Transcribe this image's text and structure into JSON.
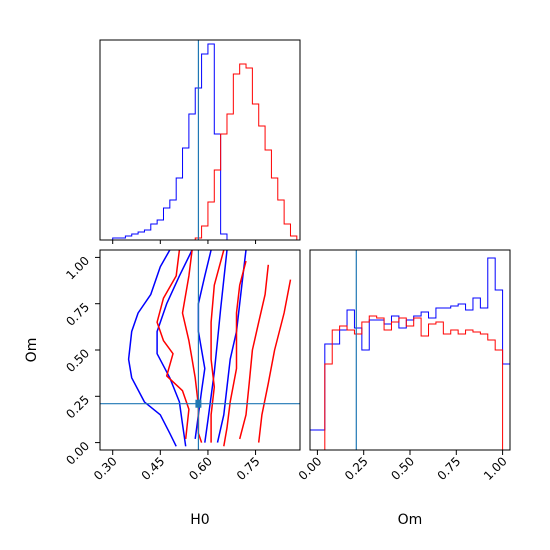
{
  "chart_data": {
    "type": "corner",
    "colors": {
      "series_a": "#0000ff",
      "series_b": "#ff0000",
      "truth": "#1f77b4"
    },
    "truth": {
      "H0": 0.57,
      "Om": 0.21
    },
    "panels": {
      "h0_hist": {
        "type": "histogram",
        "xlim": [
          0.26,
          0.89
        ],
        "x_ticks": [
          0.3,
          0.45,
          0.6,
          0.75
        ],
        "bins": [
          0.26,
          0.28,
          0.3,
          0.32,
          0.34,
          0.36,
          0.38,
          0.4,
          0.42,
          0.44,
          0.46,
          0.48,
          0.5,
          0.52,
          0.54,
          0.56,
          0.58,
          0.6,
          0.62,
          0.64,
          0.66,
          0.68,
          0.7,
          0.72,
          0.74,
          0.76,
          0.78,
          0.8,
          0.82,
          0.84,
          0.86,
          0.88
        ],
        "series": [
          {
            "color_key": "series_a",
            "values": [
              0,
              0,
              0.01,
              0.01,
              0.02,
              0.03,
              0.04,
              0.05,
              0.08,
              0.1,
              0.16,
              0.2,
              0.31,
              0.46,
              0.63,
              0.76,
              0.93,
              0.98,
              0.53,
              0.03,
              0,
              0,
              0,
              0,
              0,
              0,
              0,
              0,
              0,
              0,
              0
            ]
          },
          {
            "color_key": "series_b",
            "values": [
              0,
              0,
              0,
              0,
              0,
              0,
              0,
              0,
              0,
              0,
              0,
              0,
              0,
              0,
              0,
              0.01,
              0.07,
              0.19,
              0.35,
              0.53,
              0.63,
              0.83,
              0.88,
              0.86,
              0.68,
              0.57,
              0.45,
              0.31,
              0.2,
              0.08,
              0.02
            ]
          }
        ]
      },
      "om_hist": {
        "type": "histogram",
        "xlim": [
          -0.04,
          1.04
        ],
        "x_ticks": [
          0.0,
          0.25,
          0.5,
          0.75,
          1.0
        ],
        "x_ticklabels": [
          "0.00",
          "0.25",
          "0.50",
          "0.75",
          "1.00"
        ],
        "bins": [
          -0.04,
          0.0,
          0.04,
          0.08,
          0.12,
          0.16,
          0.2,
          0.24,
          0.28,
          0.32,
          0.36,
          0.4,
          0.44,
          0.48,
          0.52,
          0.56,
          0.6,
          0.64,
          0.68,
          0.72,
          0.76,
          0.8,
          0.84,
          0.88,
          0.92,
          0.96,
          1.0,
          1.04
        ],
        "series": [
          {
            "color_key": "series_a",
            "values": [
              0.1,
              0.1,
              0.53,
              0.53,
              0.6,
              0.7,
              0.61,
              0.5,
              0.65,
              0.65,
              0.63,
              0.67,
              0.61,
              0.65,
              0.67,
              0.69,
              0.66,
              0.71,
              0.71,
              0.72,
              0.73,
              0.7,
              0.76,
              0.71,
              0.96,
              0.8,
              0.43
            ]
          },
          {
            "color_key": "series_b",
            "values": [
              0,
              0,
              0.43,
              0.6,
              0.62,
              0.6,
              0.58,
              0.64,
              0.67,
              0.66,
              0.6,
              0.64,
              0.66,
              0.62,
              0.66,
              0.57,
              0.63,
              0.64,
              0.58,
              0.6,
              0.58,
              0.6,
              0.59,
              0.58,
              0.55,
              0.5,
              0
            ]
          }
        ]
      },
      "contour": {
        "type": "contour",
        "xlim": [
          0.26,
          0.89
        ],
        "ylim": [
          -0.04,
          1.04
        ],
        "x_ticks": [
          0.3,
          0.45,
          0.6,
          0.75
        ],
        "x_ticklabels": [
          "0.30",
          "0.45",
          "0.60",
          "0.75"
        ],
        "y_ticks": [
          0.0,
          0.25,
          0.5,
          0.75,
          1.0
        ],
        "y_ticklabels": [
          "0.00",
          "0.25",
          "0.50",
          "0.75",
          "1.00"
        ],
        "xlabel": "H0",
        "ylabel": "Om",
        "series": [
          {
            "color_key": "series_a",
            "levels": [
              [
                [
                  0.48,
                  1.04
                ],
                [
                  0.45,
                  0.95
                ],
                [
                  0.42,
                  0.8
                ],
                [
                  0.38,
                  0.7
                ],
                [
                  0.36,
                  0.6
                ],
                [
                  0.35,
                  0.45
                ],
                [
                  0.36,
                  0.35
                ],
                [
                  0.4,
                  0.22
                ],
                [
                  0.45,
                  0.15
                ],
                [
                  0.48,
                  0.05
                ],
                [
                  0.5,
                  -0.02
                ]
              ],
              [
                [
                  0.55,
                  1.04
                ],
                [
                  0.51,
                  0.9
                ],
                [
                  0.47,
                  0.75
                ],
                [
                  0.44,
                  0.6
                ],
                [
                  0.44,
                  0.48
                ],
                [
                  0.48,
                  0.35
                ],
                [
                  0.51,
                  0.22
                ],
                [
                  0.52,
                  0.1
                ],
                [
                  0.53,
                  -0.02
                ]
              ],
              [
                [
                  0.61,
                  1.04
                ],
                [
                  0.59,
                  0.9
                ],
                [
                  0.57,
                  0.75
                ],
                [
                  0.57,
                  0.6
                ],
                [
                  0.59,
                  0.4
                ],
                [
                  0.58,
                  0.28
                ],
                [
                  0.57,
                  0.15
                ],
                [
                  0.56,
                  0.02
                ]
              ],
              [
                [
                  0.66,
                  1.04
                ],
                [
                  0.65,
                  0.88
                ],
                [
                  0.64,
                  0.72
                ],
                [
                  0.63,
                  0.55
                ],
                [
                  0.62,
                  0.38
                ],
                [
                  0.61,
                  0.25
                ],
                [
                  0.6,
                  0.12
                ],
                [
                  0.59,
                  0.0
                ]
              ],
              [
                [
                  0.72,
                  1.04
                ],
                [
                  0.71,
                  0.9
                ],
                [
                  0.7,
                  0.75
                ],
                [
                  0.69,
                  0.6
                ],
                [
                  0.67,
                  0.45
                ],
                [
                  0.66,
                  0.3
                ],
                [
                  0.65,
                  0.15
                ],
                [
                  0.63,
                  0.0
                ]
              ]
            ]
          },
          {
            "color_key": "series_b",
            "levels": [
              [
                [
                  0.51,
                  1.04
                ],
                [
                  0.5,
                  0.9
                ],
                [
                  0.46,
                  0.78
                ],
                [
                  0.44,
                  0.65
                ],
                [
                  0.46,
                  0.55
                ],
                [
                  0.49,
                  0.48
                ],
                [
                  0.47,
                  0.36
                ],
                [
                  0.52,
                  0.28
                ],
                [
                  0.54,
                  0.18
                ],
                [
                  0.53,
                  0.02
                ]
              ],
              [
                [
                  0.55,
                  1.04
                ],
                [
                  0.54,
                  0.9
                ],
                [
                  0.52,
                  0.7
                ],
                [
                  0.54,
                  0.55
                ],
                [
                  0.55,
                  0.45
                ],
                [
                  0.56,
                  0.35
                ],
                [
                  0.57,
                  0.2
                ],
                [
                  0.57,
                  0.05
                ],
                [
                  0.58,
                  0.0
                ]
              ],
              [
                [
                  0.65,
                  1.04
                ],
                [
                  0.62,
                  0.85
                ],
                [
                  0.61,
                  0.65
                ],
                [
                  0.61,
                  0.45
                ],
                [
                  0.62,
                  0.3
                ],
                [
                  0.61,
                  0.15
                ],
                [
                  0.61,
                  0.0
                ]
              ],
              [
                [
                  0.72,
                  0.98
                ],
                [
                  0.7,
                  0.85
                ],
                [
                  0.69,
                  0.7
                ],
                [
                  0.69,
                  0.55
                ],
                [
                  0.69,
                  0.4
                ],
                [
                  0.67,
                  0.22
                ],
                [
                  0.66,
                  0.08
                ],
                [
                  0.65,
                  -0.02
                ]
              ],
              [
                [
                  0.79,
                  0.96
                ],
                [
                  0.78,
                  0.8
                ],
                [
                  0.76,
                  0.65
                ],
                [
                  0.74,
                  0.5
                ],
                [
                  0.73,
                  0.32
                ],
                [
                  0.72,
                  0.15
                ],
                [
                  0.7,
                  0.02
                ]
              ],
              [
                [
                  0.86,
                  0.88
                ],
                [
                  0.84,
                  0.7
                ],
                [
                  0.81,
                  0.5
                ],
                [
                  0.79,
                  0.32
                ],
                [
                  0.77,
                  0.15
                ],
                [
                  0.76,
                  0.0
                ]
              ]
            ]
          }
        ]
      }
    }
  }
}
